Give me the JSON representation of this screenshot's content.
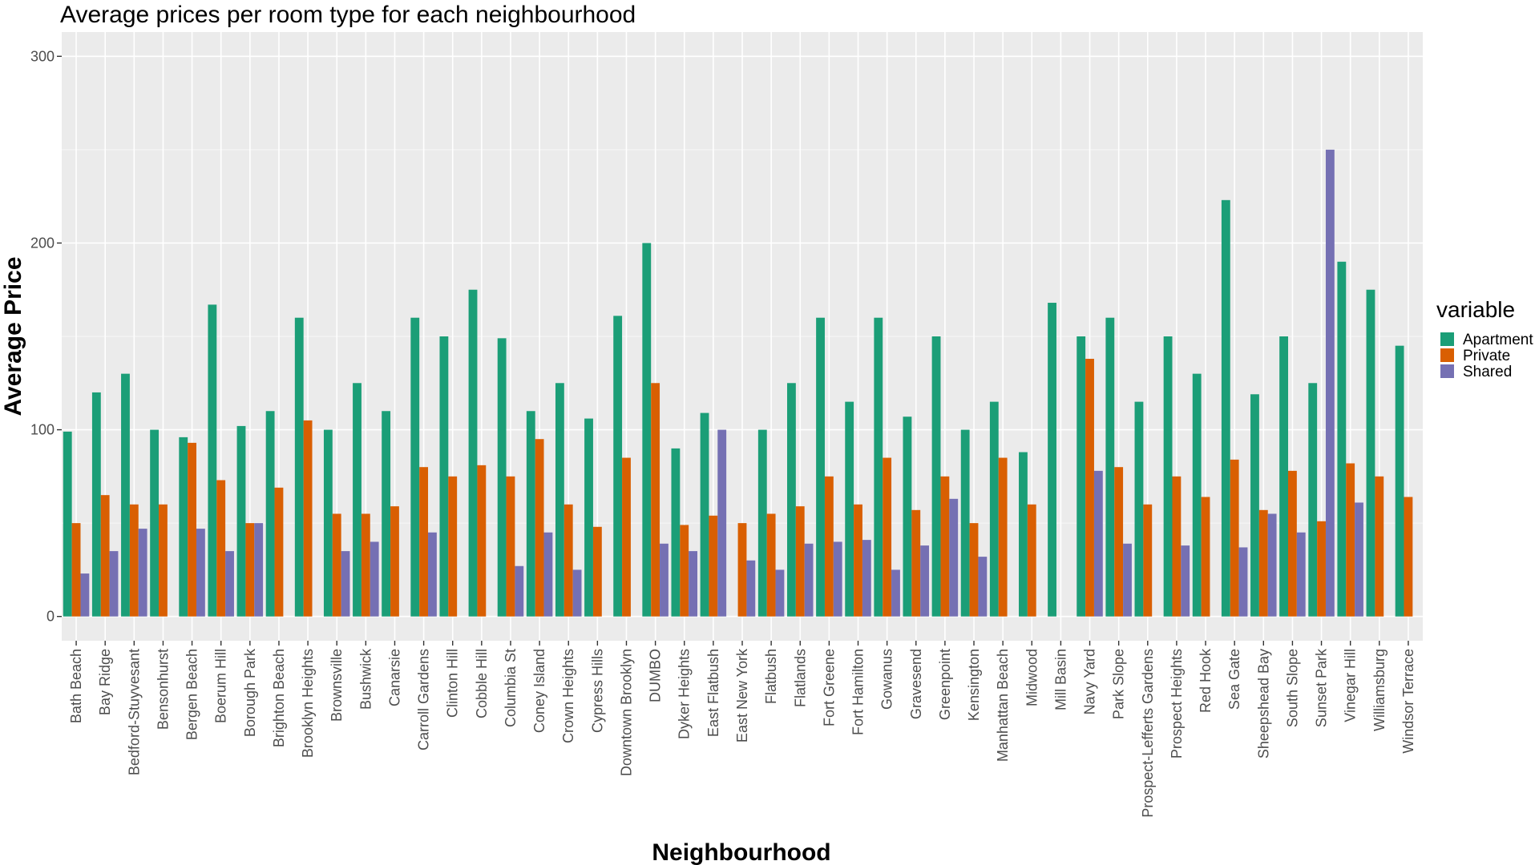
{
  "chart_data": {
    "type": "bar",
    "title": "Average prices per room type for each neighbourhood",
    "xlabel": "Neighbourhood",
    "ylabel": "Average Price",
    "ylim": [
      -13,
      313
    ],
    "yticks": [
      0,
      100,
      200,
      300
    ],
    "grid": true,
    "legend": {
      "title": "variable",
      "position": "right"
    },
    "categories": [
      "Bath Beach",
      "Bay Ridge",
      "Bedford-Stuyvesant",
      "Bensonhurst",
      "Bergen Beach",
      "Boerum Hill",
      "Borough Park",
      "Brighton Beach",
      "Brooklyn Heights",
      "Brownsville",
      "Bushwick",
      "Canarsie",
      "Carroll Gardens",
      "Clinton Hill",
      "Cobble Hill",
      "Columbia St",
      "Coney Island",
      "Crown Heights",
      "Cypress Hills",
      "Downtown Brooklyn",
      "DUMBO",
      "Dyker Heights",
      "East Flatbush",
      "East New York",
      "Flatbush",
      "Flatlands",
      "Fort Greene",
      "Fort Hamilton",
      "Gowanus",
      "Gravesend",
      "Greenpoint",
      "Kensington",
      "Manhattan Beach",
      "Midwood",
      "Mill Basin",
      "Navy Yard",
      "Park Slope",
      "Prospect-Lefferts Gardens",
      "Prospect Heights",
      "Red Hook",
      "Sea Gate",
      "Sheepshead Bay",
      "South Slope",
      "Sunset Park",
      "Vinegar Hill",
      "Williamsburg",
      "Windsor Terrace"
    ],
    "series": [
      {
        "name": "Apartment",
        "color": "#1B9E77",
        "values": [
          99,
          120,
          130,
          100,
          96,
          167,
          102,
          110,
          160,
          100,
          125,
          110,
          160,
          150,
          175,
          149,
          110,
          125,
          106,
          161,
          200,
          90,
          109,
          null,
          100,
          125,
          160,
          115,
          160,
          107,
          150,
          100,
          115,
          88,
          168,
          150,
          160,
          115,
          150,
          130,
          223,
          119,
          150,
          125,
          190,
          175,
          145
        ]
      },
      {
        "name": "Private",
        "color": "#D95F02",
        "values": [
          50,
          65,
          60,
          60,
          93,
          73,
          50,
          69,
          105,
          55,
          55,
          59,
          80,
          75,
          81,
          75,
          95,
          60,
          48,
          85,
          125,
          49,
          54,
          50,
          55,
          59,
          75,
          60,
          85,
          57,
          75,
          50,
          85,
          60,
          null,
          138,
          80,
          60,
          75,
          64,
          84,
          57,
          78,
          51,
          82,
          75,
          64
        ]
      },
      {
        "name": "Shared",
        "color": "#7570B3",
        "values": [
          23,
          35,
          47,
          null,
          47,
          35,
          50,
          null,
          null,
          35,
          40,
          null,
          45,
          null,
          null,
          27,
          45,
          25,
          null,
          null,
          39,
          35,
          100,
          30,
          25,
          39,
          40,
          41,
          25,
          38,
          63,
          32,
          null,
          null,
          null,
          78,
          39,
          null,
          38,
          null,
          37,
          55,
          45,
          250,
          61,
          null,
          null
        ]
      }
    ]
  }
}
